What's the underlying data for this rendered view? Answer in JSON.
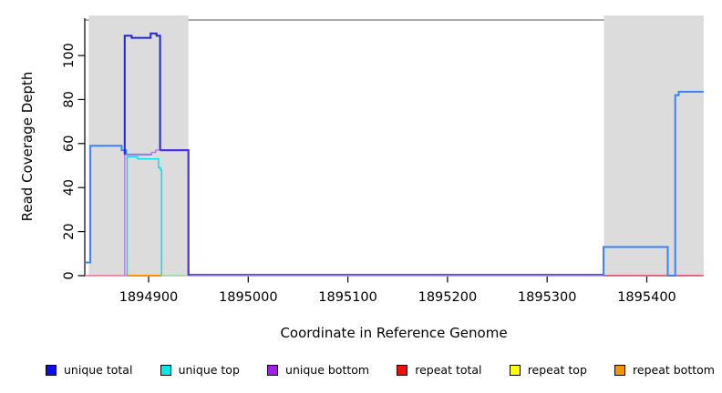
{
  "chart_data": {
    "type": "line",
    "title": "",
    "xlabel": "Coordinate in Reference Genome",
    "ylabel": "Read Coverage Depth",
    "x_axis": {
      "ticks": [
        1894900,
        1895000,
        1895100,
        1895200,
        1895300,
        1895400
      ],
      "range": [
        1894836,
        1895457
      ]
    },
    "y_axis": {
      "ticks": [
        0,
        20,
        40,
        60,
        80,
        100
      ],
      "range": [
        0,
        116
      ]
    },
    "grid": false,
    "region_color": "#dcdcdc",
    "border_color": "#909090",
    "highlight_regions": [
      {
        "from": 1894840,
        "to": 1894940
      },
      {
        "from": 1895357,
        "to": 1895457
      }
    ],
    "series": [
      {
        "name": "unique-total-left",
        "legend": "unique total",
        "color": "#3d82f2",
        "width": 2,
        "points": [
          [
            1894836,
            6
          ],
          [
            1894841.5,
            6
          ],
          [
            1894841.5,
            59
          ],
          [
            1894873,
            59
          ],
          [
            1894873,
            57
          ],
          [
            1894877.5,
            57
          ],
          [
            1894877.5,
            55
          ],
          [
            1894903,
            55
          ]
        ]
      },
      {
        "name": "unique-bottom",
        "legend": "unique bottom",
        "color": "#b678e8",
        "width": 1.4,
        "points": [
          [
            1894876,
            0
          ],
          [
            1894876,
            55
          ],
          [
            1894903,
            55
          ],
          [
            1894903,
            56
          ],
          [
            1894907,
            56
          ],
          [
            1894907,
            57
          ],
          [
            1894911.5,
            57
          ]
        ]
      },
      {
        "name": "unique-top",
        "legend": "unique top",
        "color": "#00dce8",
        "width": 1.4,
        "points": [
          [
            1894878.5,
            0
          ],
          [
            1894878.5,
            54
          ],
          [
            1894889,
            54
          ],
          [
            1894889,
            53
          ],
          [
            1894910,
            53
          ],
          [
            1894910,
            49
          ],
          [
            1894912,
            49
          ],
          [
            1894912,
            48
          ],
          [
            1894913,
            48
          ],
          [
            1894913,
            0
          ]
        ]
      },
      {
        "name": "unique-total-peak",
        "legend": "unique total",
        "color": "#2323d8",
        "width": 2,
        "points": [
          [
            1894876,
            55
          ],
          [
            1894876,
            109
          ],
          [
            1894883,
            109
          ],
          [
            1894883,
            108
          ],
          [
            1894902,
            108
          ],
          [
            1894902,
            110
          ],
          [
            1894908,
            110
          ],
          [
            1894908,
            109
          ],
          [
            1894911.5,
            109
          ],
          [
            1894911.5,
            57
          ]
        ]
      },
      {
        "name": "unique-total-bottom-overlap",
        "legend": "unique total",
        "color": "#4b2fe0",
        "width": 2.2,
        "points": [
          [
            1894911.5,
            57
          ],
          [
            1894940,
            57
          ],
          [
            1894940,
            0
          ]
        ]
      },
      {
        "name": "unique-total-right",
        "legend": "unique total",
        "color": "#3d82f2",
        "width": 2,
        "points": [
          [
            1895356.5,
            0
          ],
          [
            1895356.5,
            13
          ],
          [
            1895421,
            13
          ],
          [
            1895421,
            0
          ],
          [
            1895428.5,
            0
          ],
          [
            1895428.5,
            82
          ],
          [
            1895432,
            82
          ],
          [
            1895432,
            83.5
          ],
          [
            1895457,
            83.5
          ]
        ]
      }
    ],
    "baseline_segments": [
      {
        "name": "repeat-total-zero-left",
        "color": "#f0699a",
        "from": 1894836,
        "to": 1894878,
        "value": 0,
        "width": 1.6
      },
      {
        "name": "repeat-bottom-zero",
        "color": "#ff9100",
        "from": 1894878,
        "to": 1894913,
        "value": 0,
        "width": 2
      },
      {
        "name": "overlap-zero-green",
        "color": "#90d998",
        "from": 1894913,
        "to": 1894939.5,
        "value": 0,
        "width": 1.6
      },
      {
        "name": "unique-bottom-zero-mid",
        "color": "#a97aea",
        "from": 1894940,
        "to": 1895356,
        "value": 0,
        "width": 1.4
      },
      {
        "name": "unique-total-zero-mid",
        "color": "#4a4ae4",
        "from": 1894940,
        "to": 1895356,
        "value": 0.55,
        "width": 1.4
      },
      {
        "name": "repeat-total-zero-right",
        "color": "#e23a60",
        "from": 1895356,
        "to": 1895457,
        "value": 0,
        "width": 1.6
      }
    ],
    "legend": [
      {
        "label": "unique total",
        "color": "#0d0de8"
      },
      {
        "label": "unique top",
        "color": "#00e8e8"
      },
      {
        "label": "unique bottom",
        "color": "#a21fe8"
      },
      {
        "label": "repeat total",
        "color": "#ee1010"
      },
      {
        "label": "repeat top",
        "color": "#ffff00"
      },
      {
        "label": "repeat bottom",
        "color": "#f59300"
      }
    ]
  }
}
